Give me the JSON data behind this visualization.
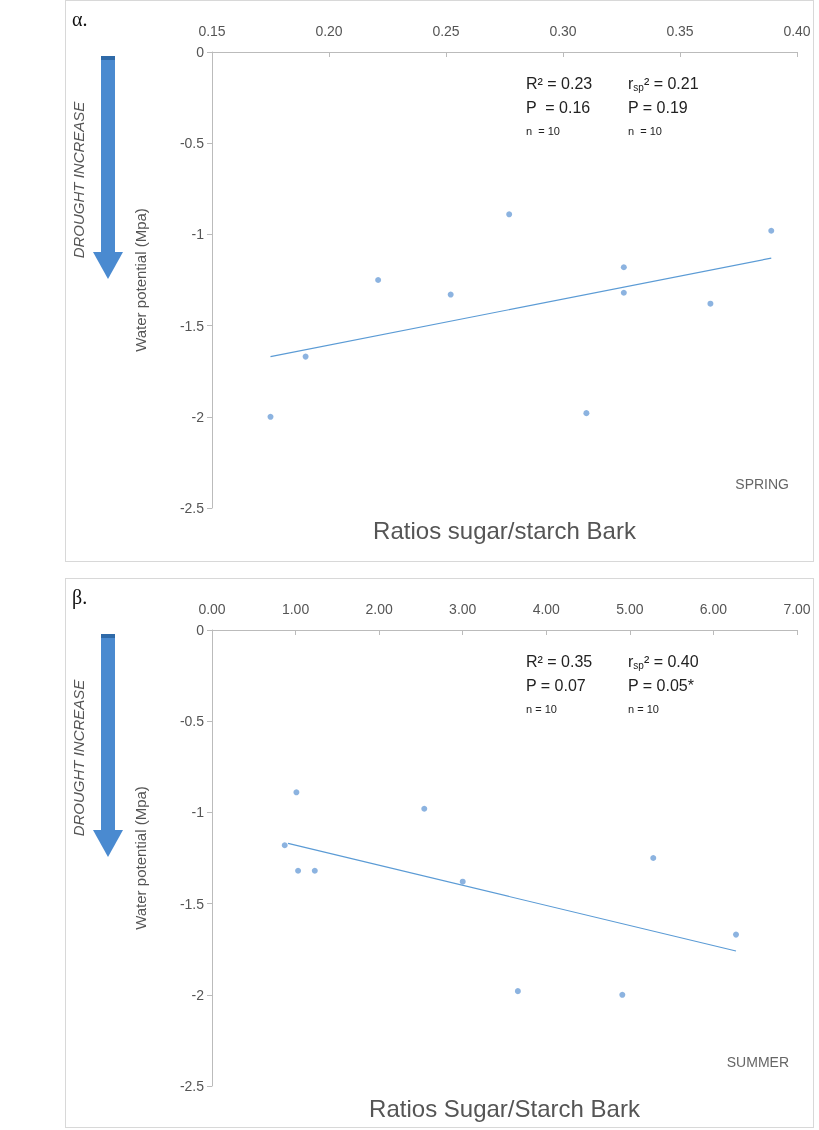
{
  "chart_data": [
    {
      "type": "scatter",
      "title": "α.",
      "xlabel": "Ratios sugar/starch Bark",
      "ylabel": "Water potential (Mpa)",
      "marker": "circle",
      "grid": false,
      "xlim": [
        0.15,
        0.4
      ],
      "xticks": [
        {
          "value": 0.15,
          "label": "0.15"
        },
        {
          "value": 0.2,
          "label": "0.20"
        },
        {
          "value": 0.25,
          "label": "0.25"
        },
        {
          "value": 0.3,
          "label": "0.30"
        },
        {
          "value": 0.35,
          "label": "0.35"
        },
        {
          "value": 0.4,
          "label": "0.40"
        }
      ],
      "ylim": [
        -2.5,
        0
      ],
      "yticks": [
        0,
        -0.5,
        -1,
        -1.5,
        -2,
        -2.5
      ],
      "annotations": [
        "R² = 0.23",
        "P  = 0.16",
        "n  = 10",
        "r$_{sp}$² = 0.21",
        "P = 0.19",
        "n  = 10",
        "SPRING",
        "DROUGHT INCREASE"
      ],
      "series": [
        {
          "type": "scatter",
          "color": "#6fa0d8",
          "x": [
            0.277,
            0.389,
            0.221,
            0.326,
            0.252,
            0.326,
            0.363,
            0.19,
            0.175,
            0.31
          ],
          "values": [
            -0.89,
            -0.98,
            -1.25,
            -1.18,
            -1.33,
            -1.32,
            -1.38,
            -1.67,
            -2.0,
            -1.98
          ]
        },
        {
          "type": "line",
          "marker": "none",
          "color": "#5b9bd5",
          "x": [
            0.175,
            0.389
          ],
          "values": [
            -1.67,
            -1.13
          ]
        }
      ]
    },
    {
      "type": "scatter",
      "title": "β.",
      "xlabel": "Ratios Sugar/Starch Bark",
      "ylabel": "Water potential (Mpa)",
      "marker": "circle",
      "grid": false,
      "xlim": [
        0,
        7
      ],
      "xticks": [
        {
          "value": 0,
          "label": "0.00"
        },
        {
          "value": 1,
          "label": "1.00"
        },
        {
          "value": 2,
          "label": "2.00"
        },
        {
          "value": 3,
          "label": "3.00"
        },
        {
          "value": 4,
          "label": "4.00"
        },
        {
          "value": 5,
          "label": "5.00"
        },
        {
          "value": 6,
          "label": "6.00"
        },
        {
          "value": 7,
          "label": "7.00"
        }
      ],
      "ylim": [
        -2.5,
        0
      ],
      "yticks": [
        0,
        -0.5,
        -1,
        -1.5,
        -2,
        -2.5
      ],
      "annotations": [
        "R² = 0.35",
        "P = 0.07",
        "n = 10",
        "r$_{sp}$² = 0.40",
        "P = 0.05*",
        "n = 10",
        "SUMMER",
        "DROUGHT INCREASE"
      ],
      "series": [
        {
          "type": "scatter",
          "color": "#6fa0d8",
          "x": [
            1.01,
            2.54,
            0.87,
            1.03,
            1.23,
            3.0,
            5.28,
            6.27,
            3.66,
            4.91
          ],
          "values": [
            -0.89,
            -0.98,
            -1.18,
            -1.32,
            -1.32,
            -1.38,
            -1.25,
            -1.67,
            -1.98,
            -2.0
          ]
        },
        {
          "type": "line",
          "marker": "none",
          "color": "#5b9bd5",
          "x": [
            0.91,
            6.27
          ],
          "values": [
            -1.17,
            -1.76
          ]
        }
      ]
    }
  ]
}
